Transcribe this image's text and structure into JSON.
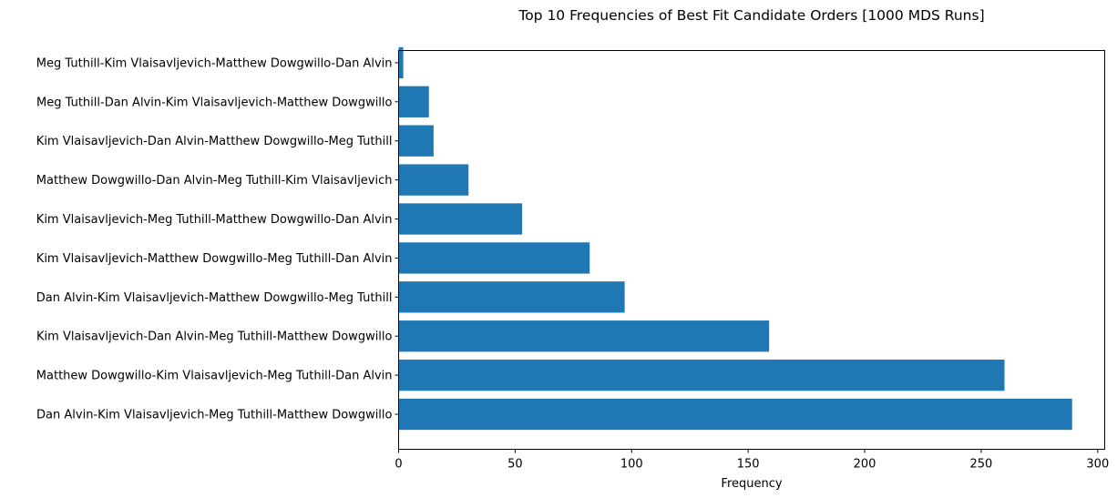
{
  "chart_data": {
    "type": "bar",
    "orientation": "horizontal",
    "title": "Top 10 Frequencies of Best Fit Candidate Orders [1000 MDS Runs]",
    "xlabel": "Frequency",
    "ylabel": "",
    "xlim": [
      0,
      303
    ],
    "xticks": [
      0,
      50,
      100,
      150,
      200,
      250,
      300
    ],
    "grid": false,
    "bar_color": "#1f77b4",
    "categories": [
      "Dan Alvin-Kim Vlaisavljevich-Meg Tuthill-Matthew Dowgwillo",
      "Matthew Dowgwillo-Kim Vlaisavljevich-Meg Tuthill-Dan Alvin",
      "Kim Vlaisavljevich-Dan Alvin-Meg Tuthill-Matthew Dowgwillo",
      "Dan Alvin-Kim Vlaisavljevich-Matthew Dowgwillo-Meg Tuthill",
      "Kim Vlaisavljevich-Matthew Dowgwillo-Meg Tuthill-Dan Alvin",
      "Kim Vlaisavljevich-Meg Tuthill-Matthew Dowgwillo-Dan Alvin",
      "Matthew Dowgwillo-Dan Alvin-Meg Tuthill-Kim Vlaisavljevich",
      "Kim Vlaisavljevich-Dan Alvin-Matthew Dowgwillo-Meg Tuthill",
      "Meg Tuthill-Dan Alvin-Kim Vlaisavljevich-Matthew Dowgwillo",
      "Meg Tuthill-Kim Vlaisavljevich-Matthew Dowgwillo-Dan Alvin"
    ],
    "values": [
      289,
      260,
      159,
      97,
      82,
      53,
      30,
      15,
      13,
      2
    ]
  }
}
